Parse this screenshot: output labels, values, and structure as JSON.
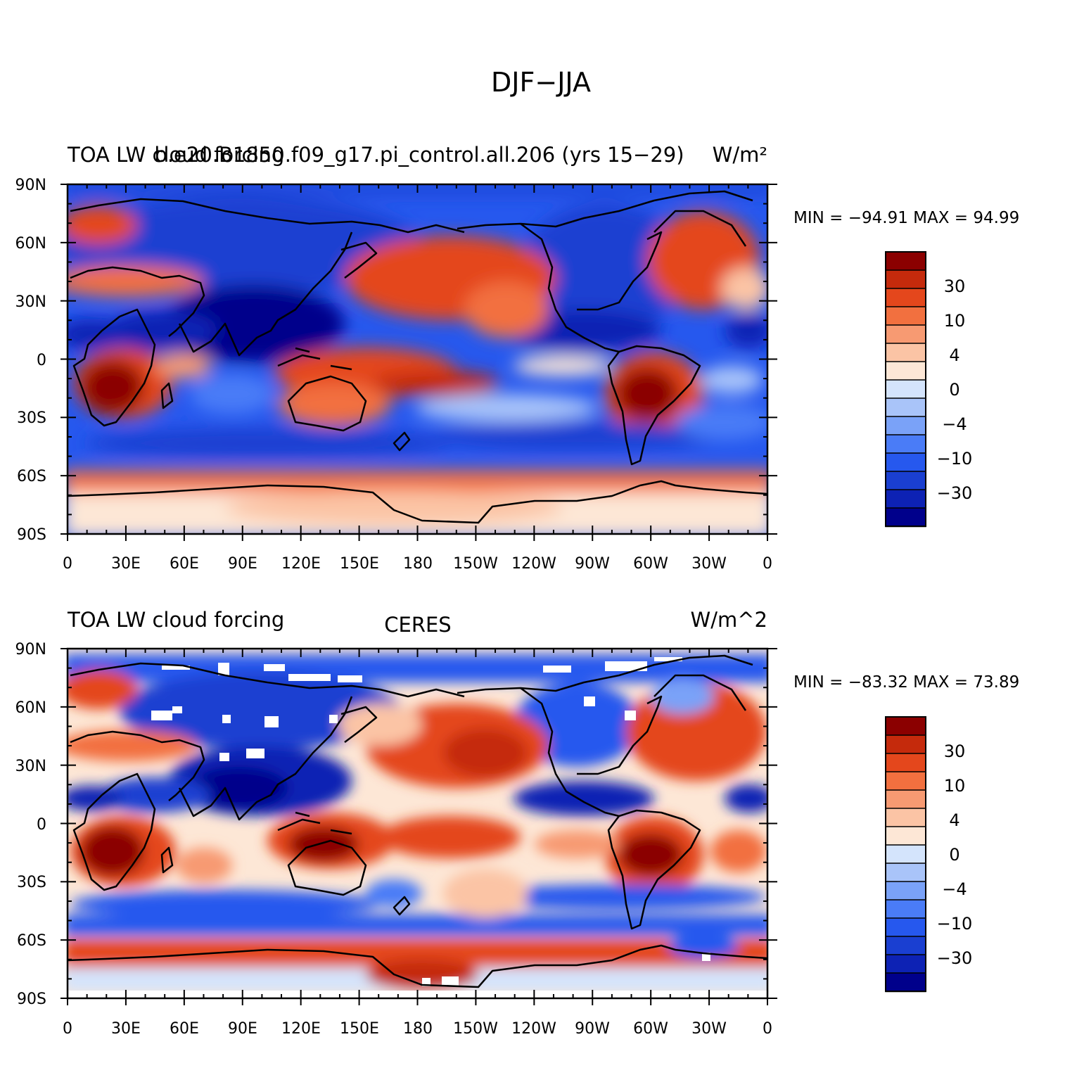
{
  "figure": {
    "title": "DJF−JJA",
    "palette": [
      "#00008b",
      "#0d22b4",
      "#1a3fd1",
      "#2658ee",
      "#4a7cf7",
      "#7aa2f8",
      "#a9c4f9",
      "#d4e4fc",
      "#fde7d6",
      "#fbc4a5",
      "#f79a72",
      "#f2703f",
      "#e4471c",
      "#c52a0c",
      "#8b0000"
    ],
    "colorbar_labels": [
      "30",
      "10",
      "4",
      "0",
      "−4",
      "−10",
      "−30"
    ],
    "lat_labels": [
      "90N",
      "60N",
      "30N",
      "0",
      "30S",
      "60S",
      "90S"
    ],
    "lon_labels": [
      "0",
      "30E",
      "60E",
      "90E",
      "120E",
      "150E",
      "180",
      "150W",
      "120W",
      "90W",
      "60W",
      "30W",
      "0"
    ]
  },
  "panels": [
    {
      "title_left": "TOA LW cloud forcing",
      "title_center": "b.e20.B1850.f09_g17.pi_control.all.206 (yrs 15−29)",
      "title_right": "W/m²",
      "minmax": "MIN = −94.91  MAX =   94.99"
    },
    {
      "title_left": "TOA LW cloud forcing",
      "title_center": "CERES",
      "title_right": "W/m^2",
      "minmax": "MIN = −83.32  MAX =   73.89"
    }
  ],
  "chart_data": [
    {
      "type": "heatmap",
      "title": "TOA LW cloud forcing — b.e20.B1850.f09_g17.pi_control.all.206 (yrs 15−29)",
      "units": "W/m²",
      "xlim": [
        0,
        360
      ],
      "ylim": [
        -90,
        90
      ],
      "colorbar_levels": [
        -50,
        -40,
        -30,
        -20,
        -10,
        -6,
        -4,
        -2,
        0,
        2,
        4,
        6,
        10,
        20,
        30,
        40,
        50
      ],
      "min": -94.91,
      "max": 94.99
    },
    {
      "type": "heatmap",
      "title": "TOA LW cloud forcing — CERES",
      "units": "W/m^2",
      "xlim": [
        0,
        360
      ],
      "ylim": [
        -90,
        90
      ],
      "colorbar_levels": [
        -50,
        -40,
        -30,
        -20,
        -10,
        -6,
        -4,
        -2,
        0,
        2,
        4,
        6,
        10,
        20,
        30,
        40,
        50
      ],
      "min": -83.32,
      "max": 73.89
    }
  ]
}
